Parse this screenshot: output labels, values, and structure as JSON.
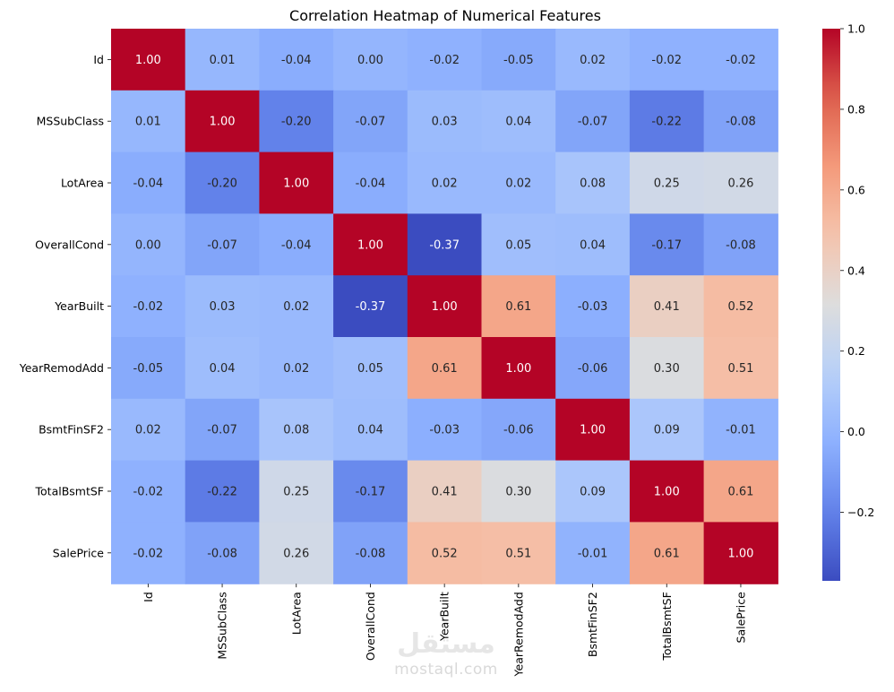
{
  "chart_data": {
    "type": "heatmap",
    "title": "Correlation Heatmap of Numerical Features",
    "labels": [
      "Id",
      "MSSubClass",
      "LotArea",
      "OverallCond",
      "YearBuilt",
      "YearRemodAdd",
      "BsmtFinSF2",
      "TotalBsmtSF",
      "SalePrice"
    ],
    "values": [
      [
        1.0,
        0.01,
        -0.04,
        -0.0,
        -0.02,
        -0.05,
        0.02,
        -0.02,
        -0.02
      ],
      [
        0.01,
        1.0,
        -0.2,
        -0.07,
        0.03,
        0.04,
        -0.07,
        -0.22,
        -0.08
      ],
      [
        -0.04,
        -0.2,
        1.0,
        -0.04,
        0.02,
        0.02,
        0.08,
        0.25,
        0.26
      ],
      [
        -0.0,
        -0.07,
        -0.04,
        1.0,
        -0.37,
        0.05,
        0.04,
        -0.17,
        -0.08
      ],
      [
        -0.02,
        0.03,
        0.02,
        -0.37,
        1.0,
        0.61,
        -0.03,
        0.41,
        0.52
      ],
      [
        -0.05,
        0.04,
        0.02,
        0.05,
        0.61,
        1.0,
        -0.06,
        0.3,
        0.51
      ],
      [
        0.02,
        -0.07,
        0.08,
        0.04,
        -0.03,
        -0.06,
        1.0,
        0.09,
        -0.01
      ],
      [
        -0.02,
        -0.22,
        0.25,
        -0.17,
        0.41,
        0.3,
        0.09,
        1.0,
        0.61
      ],
      [
        -0.02,
        -0.08,
        0.26,
        -0.08,
        0.52,
        0.51,
        -0.01,
        0.61,
        1.0
      ]
    ],
    "colormap": "coolwarm",
    "vmin": -0.37,
    "vmax": 1.0,
    "colorbar_ticks": [
      1.0,
      0.8,
      0.6,
      0.4,
      0.2,
      0.0,
      -0.2
    ],
    "colorbar_tick_labels": [
      "1.0",
      "0.8",
      "0.6",
      "0.4",
      "0.2",
      "0.0",
      "−0.2"
    ],
    "annotate": true,
    "number_format": "0.00"
  },
  "watermark": {
    "script_text": "مستقل",
    "domain_text": "mostaql.com"
  }
}
